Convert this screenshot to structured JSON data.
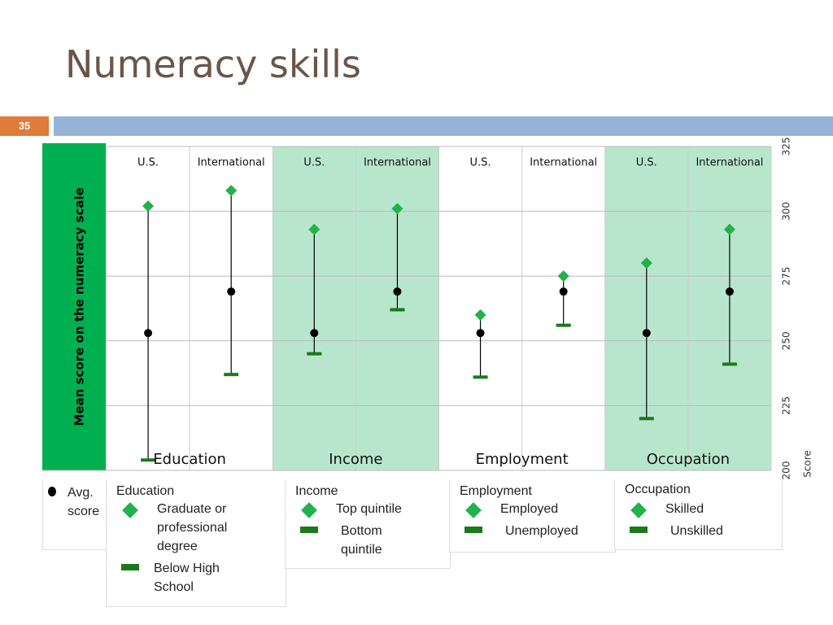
{
  "chart_data": {
    "type": "range",
    "title": "Numeracy skills",
    "slide_number": "35",
    "y_label": "Mean score on the numeracy scale",
    "y_axis_label": "Score",
    "ylim": [
      200,
      325
    ],
    "yticks": [
      200,
      225,
      250,
      275,
      300,
      325
    ],
    "grid": true,
    "avg_name": "Avg. score",
    "avg_color": "#000000",
    "high_color": "#22b14c",
    "low_color": "#1a7a1a",
    "shade_color": "#b8e6cc",
    "groups": [
      {
        "name": "Education",
        "categories": [
          "U.S.",
          "International"
        ],
        "high": [
          302,
          308
        ],
        "avg": [
          253,
          269
        ],
        "low": [
          204,
          237
        ],
        "high_name": "Graduate or professional degree",
        "low_name": "Below High School",
        "shaded": false
      },
      {
        "name": "Income",
        "categories": [
          "U.S.",
          "International"
        ],
        "high": [
          293,
          301
        ],
        "avg": [
          253,
          269
        ],
        "low": [
          245,
          262
        ],
        "high_name": "Top quintile",
        "low_name": "Bottom quintile",
        "shaded": true
      },
      {
        "name": "Employment",
        "categories": [
          "U.S.",
          "International"
        ],
        "high": [
          260,
          275
        ],
        "avg": [
          253,
          269
        ],
        "low": [
          236,
          256
        ],
        "high_name": "Employed",
        "low_name": "Unemployed",
        "shaded": false
      },
      {
        "name": "Occupation",
        "categories": [
          "U.S.",
          "International"
        ],
        "high": [
          280,
          293
        ],
        "avg": [
          253,
          269
        ],
        "low": [
          220,
          241
        ],
        "high_name": "Skilled",
        "low_name": "Unskilled",
        "shaded": true
      }
    ]
  }
}
